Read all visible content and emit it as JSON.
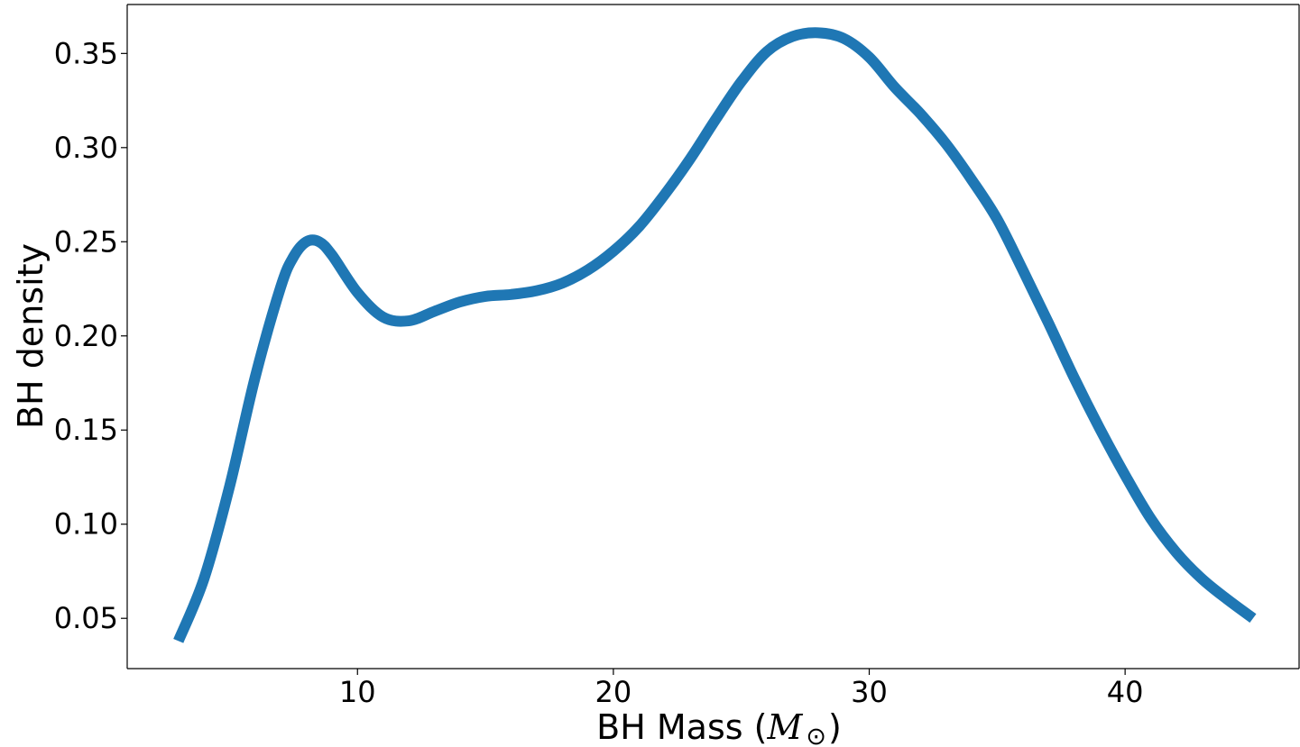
{
  "chart_data": {
    "type": "line",
    "title": "",
    "xlabel": {
      "prefix": "BH Mass (",
      "symbol": "M",
      "subscript": "⊙",
      "suffix": ")"
    },
    "ylabel": "BH density",
    "xlim": [
      1.0,
      46.8
    ],
    "ylim": [
      0.0233,
      0.376
    ],
    "x_ticks": [
      10,
      20,
      30,
      40
    ],
    "x_tick_labels": [
      "10",
      "20",
      "30",
      "40"
    ],
    "y_ticks": [
      0.05,
      0.1,
      0.15,
      0.2,
      0.25,
      0.3,
      0.35
    ],
    "y_tick_labels": [
      "0.05",
      "0.10",
      "0.15",
      "0.20",
      "0.25",
      "0.30",
      "0.35"
    ],
    "grid": false,
    "series_color": "#1f77b4",
    "series": [
      {
        "x": [
          3.0,
          4.0,
          5.0,
          6.0,
          7.0,
          7.5,
          8.0,
          8.5,
          9.0,
          10.0,
          11.0,
          12.0,
          13.0,
          14.0,
          15.0,
          16.0,
          17.0,
          18.0,
          19.0,
          20.0,
          21.0,
          22.0,
          23.0,
          24.0,
          25.0,
          26.0,
          27.0,
          28.0,
          29.0,
          30.0,
          31.0,
          32.0,
          33.0,
          34.0,
          35.0,
          36.0,
          37.0,
          38.0,
          39.0,
          40.0,
          41.0,
          42.0,
          43.0,
          44.0,
          45.0
        ],
        "y": [
          0.038,
          0.071,
          0.12,
          0.178,
          0.226,
          0.242,
          0.25,
          0.25,
          0.243,
          0.223,
          0.21,
          0.208,
          0.213,
          0.218,
          0.221,
          0.222,
          0.224,
          0.228,
          0.235,
          0.245,
          0.258,
          0.275,
          0.294,
          0.315,
          0.335,
          0.351,
          0.359,
          0.361,
          0.358,
          0.348,
          0.332,
          0.318,
          0.302,
          0.283,
          0.262,
          0.235,
          0.207,
          0.178,
          0.151,
          0.126,
          0.103,
          0.085,
          0.071,
          0.06,
          0.05
        ]
      }
    ]
  }
}
